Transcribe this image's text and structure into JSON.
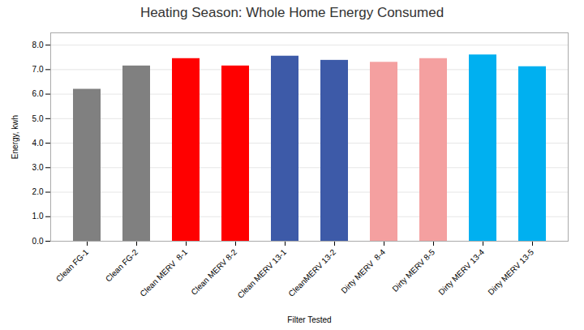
{
  "chart_data": {
    "type": "bar",
    "title": "Heating Season: Whole Home Energy Consumed",
    "xlabel": "Filter Tested",
    "ylabel": "Energy, kwh",
    "categories": [
      "Clean FG-1",
      "Clean FG-2",
      "Clean MERV  8-1",
      "Clean MERV 8-2",
      "Clean MERV 13-1",
      "CleanMERV 13-2",
      "Dirty MERV  8-4",
      "Dirty MERV 8-5",
      "Dirty MERV 13-4",
      "Dirty MERV 13-5"
    ],
    "values": [
      6.2,
      7.15,
      7.45,
      7.15,
      7.55,
      7.38,
      7.3,
      7.45,
      7.6,
      7.12
    ],
    "colors": [
      "#808080",
      "#808080",
      "#ff0000",
      "#ff0000",
      "#3d5aa8",
      "#3d5aa8",
      "#f4a0a0",
      "#f4a0a0",
      "#00b0f0",
      "#00b0f0"
    ],
    "ylim": [
      0,
      8.5
    ],
    "yticks": [
      {
        "value": 0,
        "label": "0.0"
      },
      {
        "value": 1,
        "label": "1.0"
      },
      {
        "value": 2,
        "label": "2.0"
      },
      {
        "value": 3,
        "label": "3.0"
      },
      {
        "value": 4,
        "label": "4.0"
      },
      {
        "value": 5,
        "label": "5.0"
      },
      {
        "value": 6,
        "label": "6.0"
      },
      {
        "value": 7,
        "label": "7.0"
      },
      {
        "value": 8,
        "label": "8.0"
      }
    ],
    "grid": true
  }
}
